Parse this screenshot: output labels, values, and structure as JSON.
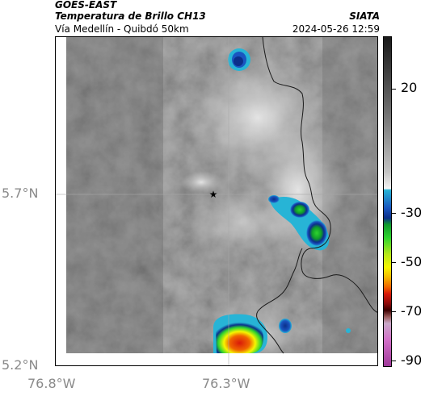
{
  "header": {
    "satellite": "GOES-EAST",
    "product": "Temperatura de Brillo CH13",
    "region": "Vía Medellín - Quibdó 50km",
    "agency": "SIATA",
    "datetime": "2024-05-26 12:59"
  },
  "axes": {
    "lat_labels": [
      "5.7°N",
      "5.2°N"
    ],
    "lon_labels": [
      "76.8°W",
      "76.3°W"
    ]
  },
  "colorbar": {
    "labels": [
      "20",
      "-30",
      "-50",
      "-70",
      "-90"
    ]
  },
  "map": {
    "marker_icon": "star-icon",
    "colors": {
      "background_gray": "#7a7a7a",
      "cold_cyan": "#27b4d6",
      "cold_blue": "#0b2f8a",
      "green": "#2ed42e",
      "yellow": "#f6f600",
      "orange": "#f06400",
      "red": "#d91a0a"
    }
  }
}
